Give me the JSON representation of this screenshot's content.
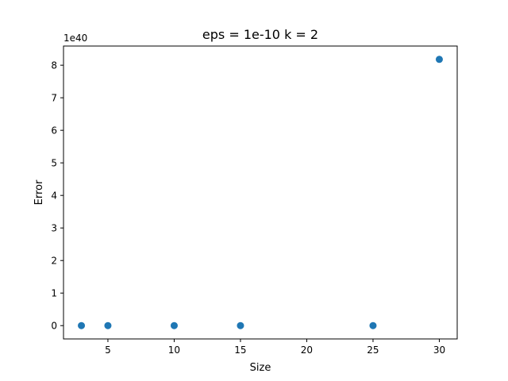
{
  "chart_data": {
    "type": "scatter",
    "title": "eps = 1e-10 k = 2",
    "xlabel": "Size",
    "ylabel": "Error",
    "y_offset_label": "1e40",
    "xlim": [
      1.65,
      31.35
    ],
    "ylim": [
      -0.409,
      8.589
    ],
    "x_ticks": [
      5,
      10,
      15,
      20,
      25,
      30
    ],
    "x_tick_labels": [
      "5",
      "10",
      "15",
      "20",
      "25",
      "30"
    ],
    "y_ticks": [
      0,
      1,
      2,
      3,
      4,
      5,
      6,
      7,
      8
    ],
    "y_tick_labels": [
      "0",
      "1",
      "2",
      "3",
      "4",
      "5",
      "6",
      "7",
      "8"
    ],
    "y_scale_note": "y values in units of 1e40",
    "grid": false,
    "legend": "none",
    "color": "#1f77b4",
    "series": [
      {
        "x": [
          3,
          5,
          10,
          15,
          25,
          30
        ],
        "y": [
          0,
          0,
          0,
          0,
          0,
          8.18
        ]
      }
    ]
  }
}
